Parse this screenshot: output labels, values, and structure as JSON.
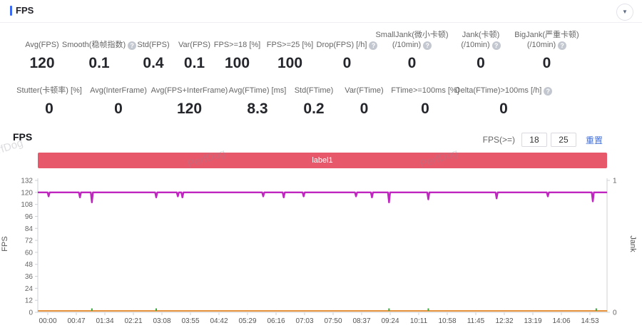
{
  "header": {
    "title": "FPS"
  },
  "icons": {
    "collapse": "▼",
    "help": "?"
  },
  "stats": {
    "row1": [
      {
        "label": "Avg(FPS)",
        "label2": "",
        "value": "120",
        "help": false
      },
      {
        "label": "Smooth(稳帧指数)",
        "label2": "",
        "value": "0.1",
        "help": true
      },
      {
        "label": "Std(FPS)",
        "label2": "",
        "value": "0.4",
        "help": false
      },
      {
        "label": "Var(FPS)",
        "label2": "",
        "value": "0.1",
        "help": false
      },
      {
        "label": "FPS>=18 [%]",
        "label2": "",
        "value": "100",
        "help": false
      },
      {
        "label": "FPS>=25 [%]",
        "label2": "",
        "value": "100",
        "help": false
      },
      {
        "label": "Drop(FPS) [/h]",
        "label2": "",
        "value": "0",
        "help": true
      },
      {
        "label": "SmallJank(微小卡顿)",
        "label2": "(/10min)",
        "value": "0",
        "help": true
      },
      {
        "label": "Jank(卡顿)",
        "label2": "(/10min)",
        "value": "0",
        "help": true
      },
      {
        "label": "BigJank(严重卡顿)",
        "label2": "(/10min)",
        "value": "0",
        "help": true
      }
    ],
    "row2": [
      {
        "label": "Stutter(卡顿率) [%]",
        "label2": "",
        "value": "0",
        "help": false
      },
      {
        "label": "Avg(InterFrame)",
        "label2": "",
        "value": "0",
        "help": false
      },
      {
        "label": "Avg(FPS+InterFrame)",
        "label2": "",
        "value": "120",
        "help": false
      },
      {
        "label": "Avg(FTime) [ms]",
        "label2": "",
        "value": "8.3",
        "help": false
      },
      {
        "label": "Std(FTime)",
        "label2": "",
        "value": "0.2",
        "help": false
      },
      {
        "label": "Var(FTime)",
        "label2": "",
        "value": "0",
        "help": false
      },
      {
        "label": "FTime>=100ms [%]",
        "label2": "",
        "value": "0",
        "help": false
      },
      {
        "label": "Delta(FTime)>100ms [/h]",
        "label2": "",
        "value": "0",
        "help": true
      }
    ]
  },
  "chart_section": {
    "title": "FPS",
    "controls": {
      "label": "FPS(>=)",
      "threshold1": "18",
      "threshold2": "25",
      "reset": "重置"
    }
  },
  "banner": {
    "text": "label1",
    "color": "#e7586a"
  },
  "watermark": {
    "text": "PerfDog"
  },
  "chart_data": {
    "type": "line",
    "title": "label1",
    "x_axis": {
      "ticks": [
        "00:00",
        "00:47",
        "01:34",
        "02:21",
        "03:08",
        "03:55",
        "04:42",
        "05:29",
        "06:16",
        "07:03",
        "07:50",
        "08:37",
        "09:24",
        "10:11",
        "10:58",
        "11:45",
        "12:32",
        "13:19",
        "14:06",
        "14:53"
      ]
    },
    "y_axis_left": {
      "label": "FPS",
      "min": 0,
      "max": 132,
      "step": 12
    },
    "y_axis_right": {
      "label": "Jank",
      "min": 0,
      "max": 1,
      "ticks": [
        1,
        0
      ]
    },
    "series": [
      {
        "name": "FPS",
        "color": "#bf26bf",
        "axis": "left",
        "baseline": 120,
        "dips": [
          [
            0.019,
            116
          ],
          [
            0.074,
            115
          ],
          [
            0.095,
            110
          ],
          [
            0.208,
            115
          ],
          [
            0.246,
            116
          ],
          [
            0.254,
            115
          ],
          [
            0.396,
            116
          ],
          [
            0.432,
            115
          ],
          [
            0.467,
            116
          ],
          [
            0.559,
            116
          ],
          [
            0.587,
            115
          ],
          [
            0.617,
            110
          ],
          [
            0.686,
            113
          ],
          [
            0.806,
            114
          ],
          [
            0.896,
            116
          ],
          [
            0.975,
            111
          ]
        ]
      },
      {
        "name": "Jank",
        "color": "#e5913c",
        "axis": "right",
        "baseline": 0,
        "dips": []
      }
    ],
    "drop_markers": {
      "color": "#3aa83a",
      "positions": [
        0.095,
        0.208,
        0.617,
        0.686,
        0.981
      ]
    },
    "grid": false,
    "legend_position": "none"
  }
}
